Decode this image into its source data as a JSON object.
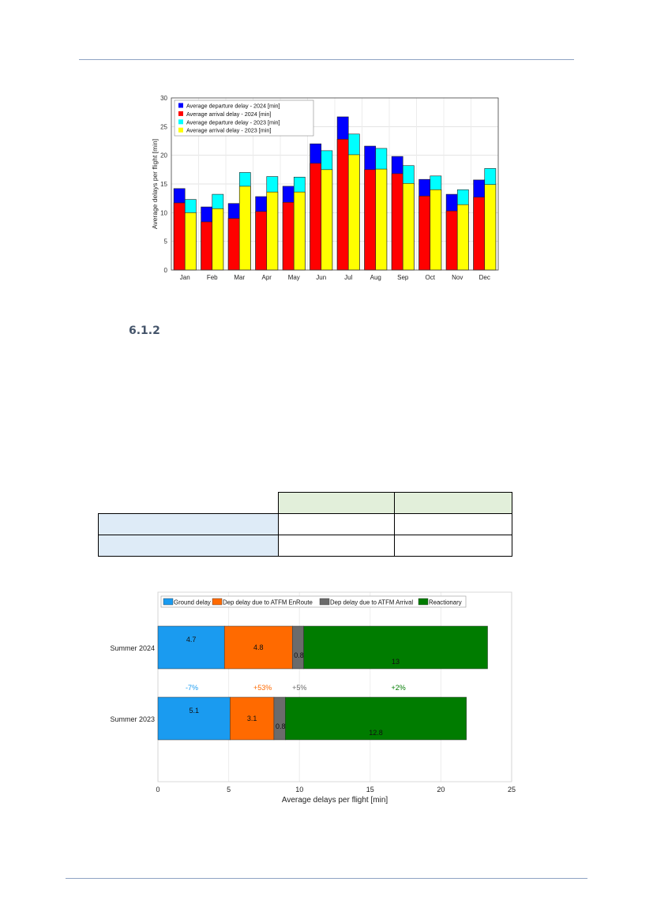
{
  "section": {
    "number": "6.1.2"
  },
  "colors": {
    "dep2024": "#0000ff",
    "arr2024": "#ff0000",
    "dep2023": "#00ffff",
    "arr2023": "#ffff00",
    "rule": "#8ea3c4",
    "table_header_bg": "#e2efda",
    "table_row_bg": "#deebf7"
  },
  "table": {
    "header": [
      "",
      "",
      ""
    ],
    "rows": [
      [
        "",
        "",
        ""
      ],
      [
        "",
        "",
        ""
      ]
    ]
  },
  "chart_data": [
    {
      "type": "bar",
      "stacked_overlay": true,
      "categories": [
        "Jan",
        "Feb",
        "Mar",
        "Apr",
        "May",
        "Jun",
        "Jul",
        "Aug",
        "Sep",
        "Oct",
        "Nov",
        "Dec"
      ],
      "ylabel": "Average delays per flight [min]",
      "ylim": [
        0,
        30
      ],
      "yticks": [
        0,
        5,
        10,
        15,
        20,
        25,
        30
      ],
      "grid": true,
      "legend_position": "top-left",
      "series": [
        {
          "name": "Average departure delay - 2024 [min]",
          "color": "#0000ff",
          "group": "2024",
          "values": [
            14.2,
            11.0,
            11.6,
            12.8,
            14.6,
            22.0,
            26.7,
            21.6,
            19.8,
            15.8,
            13.2,
            15.7
          ]
        },
        {
          "name": "Average arrival delay - 2024 [min]",
          "color": "#ff0000",
          "group": "2024",
          "values": [
            11.7,
            8.4,
            9.0,
            10.2,
            11.8,
            18.6,
            22.8,
            17.5,
            16.8,
            12.9,
            10.3,
            12.7
          ]
        },
        {
          "name": "Average departure delay - 2023 [min]",
          "color": "#00ffff",
          "group": "2023",
          "values": [
            12.3,
            13.2,
            17.0,
            16.3,
            16.2,
            20.8,
            23.7,
            21.2,
            18.2,
            16.4,
            14.0,
            17.7
          ]
        },
        {
          "name": "Average arrival delay - 2023 [min]",
          "color": "#ffff00",
          "group": "2023",
          "values": [
            10.0,
            10.7,
            14.6,
            13.6,
            13.6,
            17.5,
            20.1,
            17.6,
            15.1,
            14.0,
            11.4,
            14.9
          ]
        }
      ]
    },
    {
      "type": "bar",
      "orientation": "horizontal",
      "stacked": true,
      "categories": [
        "Summer 2024",
        "Summer 2023"
      ],
      "xlabel": "Average delays per flight [min]",
      "xlim": [
        0,
        25
      ],
      "xticks": [
        0,
        5,
        10,
        15,
        20,
        25
      ],
      "grid": true,
      "legend_position": "top",
      "series": [
        {
          "name": "Ground delay",
          "color": "#1a9bf0",
          "values": [
            4.7,
            5.1
          ],
          "labels": [
            "4.7",
            "5.1"
          ]
        },
        {
          "name": "Dep delay due to ATFM EnRoute",
          "color": "#ff6a00",
          "values": [
            4.8,
            3.1
          ],
          "labels": [
            "4.8",
            "3.1"
          ]
        },
        {
          "name": "Dep delay due to ATFM Arrival",
          "color": "#6b6b6b",
          "values": [
            0.8,
            0.8
          ],
          "labels": [
            "0.8",
            "0.8"
          ]
        },
        {
          "name": "Reactionary",
          "color": "#007c00",
          "values": [
            13.0,
            12.8
          ],
          "labels": [
            "13",
            "12.8"
          ]
        }
      ],
      "changes": [
        {
          "text": "-7%",
          "color": "#1a9bf0"
        },
        {
          "text": "+53%",
          "color": "#ff6a00"
        },
        {
          "text": "+5%",
          "color": "#6b6b6b"
        },
        {
          "text": "+2%",
          "color": "#007c00"
        }
      ]
    }
  ]
}
